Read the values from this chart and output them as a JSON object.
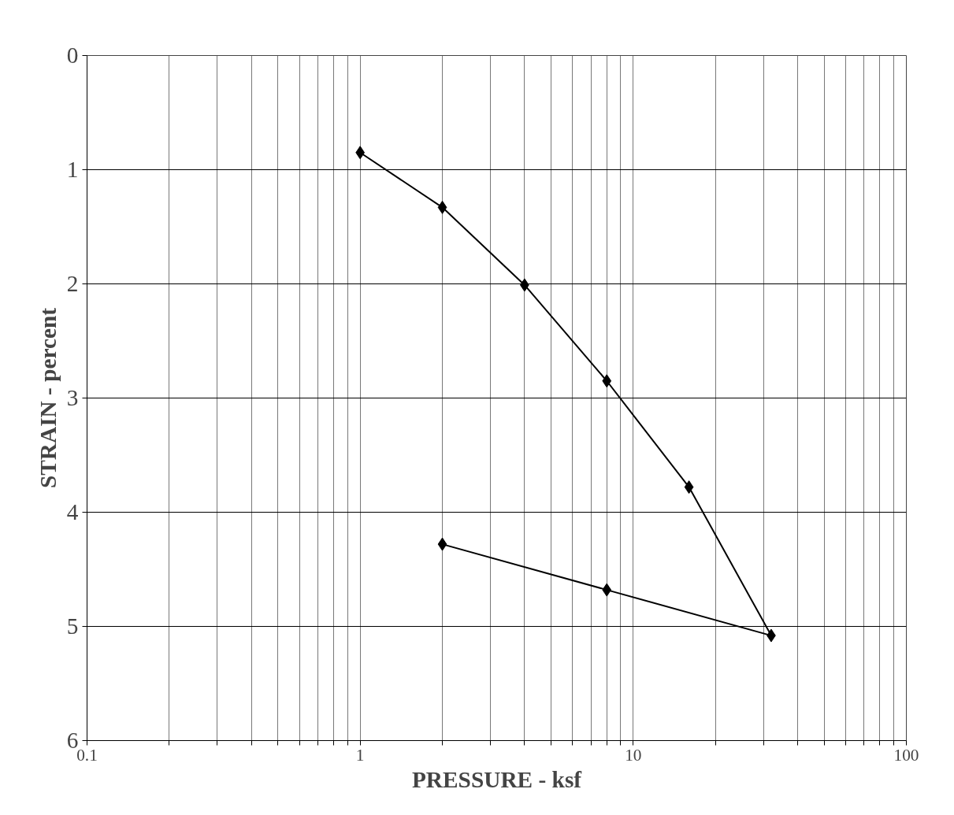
{
  "chart_data": {
    "type": "line",
    "xlabel": "PRESSURE - ksf",
    "ylabel": "STRAIN - percent",
    "log": "x",
    "grid": true,
    "marker": "diamond",
    "line_style": "solid",
    "xlim": [
      0.1,
      100
    ],
    "ylim": [
      6,
      0
    ],
    "xticks": [
      0.1,
      {
        "value": 0.2,
        "label": null
      },
      {
        "value": 0.3,
        "label": null
      },
      {
        "value": 0.4,
        "label": null
      },
      {
        "value": 0.5,
        "label": null
      },
      {
        "value": 0.6,
        "label": null
      },
      {
        "value": 0.7,
        "label": null
      },
      {
        "value": 0.8,
        "label": null
      },
      {
        "value": 0.9,
        "label": null
      },
      1,
      {
        "value": 2,
        "label": null
      },
      {
        "value": 3,
        "label": null
      },
      {
        "value": 4,
        "label": null
      },
      {
        "value": 5,
        "label": null
      },
      {
        "value": 6,
        "label": null
      },
      {
        "value": 7,
        "label": null
      },
      {
        "value": 8,
        "label": null
      },
      {
        "value": 9,
        "label": null
      },
      10,
      {
        "value": 20,
        "label": null
      },
      {
        "value": 30,
        "label": null
      },
      {
        "value": 40,
        "label": null
      },
      {
        "value": 50,
        "label": null
      },
      {
        "value": 60,
        "label": null
      },
      {
        "value": 70,
        "label": null
      },
      {
        "value": 80,
        "label": null
      },
      {
        "value": 90,
        "label": null
      },
      100
    ],
    "yticks": [
      0,
      1,
      2,
      3,
      4,
      5,
      6
    ],
    "series": [
      {
        "color": "#000000",
        "x": [
          1,
          2,
          4,
          8,
          16,
          32,
          8,
          2
        ],
        "values": [
          0.85,
          1.33,
          2.01,
          2.85,
          3.78,
          5.08,
          4.68,
          4.28
        ]
      }
    ]
  }
}
